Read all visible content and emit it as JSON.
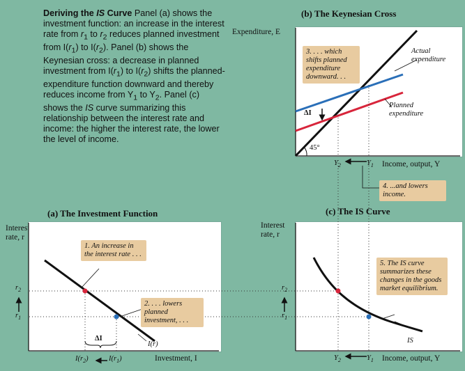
{
  "caption": {
    "lead": "Deriving the ",
    "lead_is": "IS",
    "lead_tail": " Curve",
    "body_1": " Panel (a) shows the investment function: an increase in the interest rate from ",
    "r1": "r",
    "body_2": " to ",
    "body_3": " reduces planned investment from I(",
    "body_4": ") to I(",
    "body_5": "). Panel (b) shows the Keynesian cross: a decrease in planned investment from I(",
    "body_6": ") shifts the planned-expenditure function downward and thereby reduces income from Y",
    "body_7": " to Y",
    "body_8": ". Panel (c) shows the ",
    "body_is": "IS",
    "body_9": " curve summarizing this relationship between the interest rate and income: the higher the interest rate, the lower the level of income.",
    "sub1": "1",
    "sub2": "2"
  },
  "panel_b": {
    "title": "(b) The Keynesian Cross",
    "ylabel": "Expenditure, E",
    "xlabel": "Income, output, Y",
    "angle": "45°",
    "actual": "Actual expenditure",
    "planned": "Planned expenditure",
    "delta_i": "ΔI",
    "note3": "3. . . . which shifts planned expenditure downward. . .",
    "note4": "4. ...and lowers income.",
    "y2": "Y",
    "y1": "Y",
    "sub2": "2",
    "sub1": "1"
  },
  "panel_a": {
    "title": "(a) The Investment Function",
    "ylabel": "Interest rate, r",
    "xlabel": "Investment, I",
    "curve": "I(r)",
    "note1": "1. An increase in the interest rate . . .",
    "note2": "2. . . . lowers planned investment, . . .",
    "delta_i": "ΔI",
    "ir2": "I(r",
    "ir1": "I(r",
    "close": ")",
    "r2": "r",
    "r1": "r",
    "sub2": "2",
    "sub1": "1"
  },
  "panel_c": {
    "title": "(c) The IS Curve",
    "ylabel": "Interest rate, r",
    "xlabel": "Income, output, Y",
    "curve": "IS",
    "note5": "5. The IS curve summarizes these changes in the goods market equilibrium.",
    "r2": "r",
    "r1": "r",
    "y2": "Y",
    "y1": "Y",
    "sub2": "2",
    "sub1": "1"
  },
  "colors": {
    "background": "#7fb8a2",
    "plot": "#ffffff",
    "note": "#e8cba0",
    "blue_line": "#2a6fb8",
    "red_line": "#d8253b",
    "black_line": "#111111"
  }
}
